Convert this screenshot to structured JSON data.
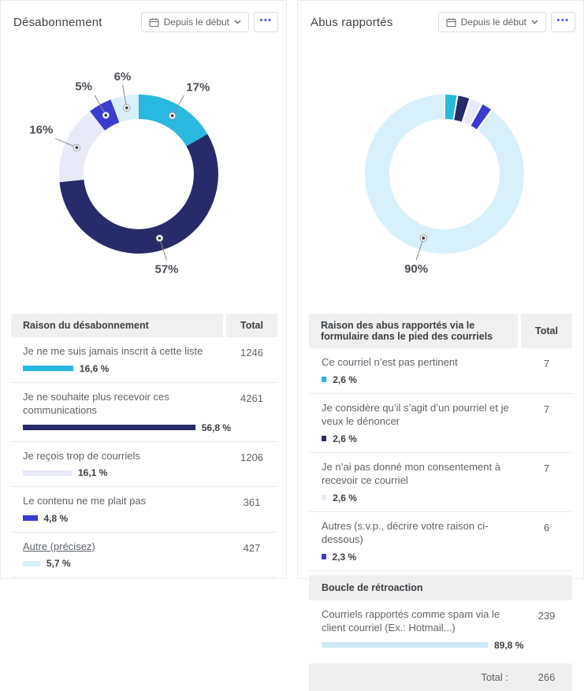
{
  "colors": {
    "palette": [
      "#28b8e0",
      "#272b69",
      "#e9eaf8",
      "#3a3bd1",
      "#d8f0fa"
    ],
    "accent_blue": "#4c5ff2",
    "table_header_bg": "#f0f0f1"
  },
  "panels": [
    {
      "title": "Désabonnement",
      "period_button": {
        "label": "Depuis le début",
        "icon": "calendar-icon",
        "chevron": "chevron-down-icon"
      },
      "more_button": {
        "icon": "ellipsis-icon"
      },
      "table": {
        "header": {
          "reason": "Raison du désabonnement",
          "total": "Total"
        },
        "rows": [
          {
            "label": "Je ne me suis jamais inscrit à cette liste",
            "link": false,
            "pct": 16.6,
            "pct_label": "16,6 %",
            "total": "1246",
            "color": "#28b8e0"
          },
          {
            "label": "Je ne souhaite plus recevoir ces communications",
            "link": false,
            "pct": 56.8,
            "pct_label": "56,8 %",
            "total": "4261",
            "color": "#272b69"
          },
          {
            "label": "Je reçois trop de courriels",
            "link": false,
            "pct": 16.1,
            "pct_label": "16,1 %",
            "total": "1206",
            "color": "#e9eaf8"
          },
          {
            "label": "Le contenu ne me plait pas",
            "link": false,
            "pct": 4.8,
            "pct_label": "4,8 %",
            "total": "361",
            "color": "#3a3bd1"
          },
          {
            "label": "Autre (précisez)",
            "link": true,
            "pct": 5.7,
            "pct_label": "5,7 %",
            "total": "427",
            "color": "#d8f0fa"
          }
        ]
      }
    },
    {
      "title": "Abus rapportés",
      "period_button": {
        "label": "Depuis le début",
        "icon": "calendar-icon",
        "chevron": "chevron-down-icon"
      },
      "more_button": {
        "icon": "ellipsis-icon"
      },
      "table": {
        "header": {
          "reason": "Raison des abus rapportés via le formulaire dans le pied des courriels",
          "total": "Total"
        },
        "rows": [
          {
            "label": "Ce courriel n’est pas pertinent",
            "link": false,
            "pct": 2.6,
            "pct_label": "2,6 %",
            "total": "7",
            "color": "#28b8e0"
          },
          {
            "label": "Je considère qu’il s’agit d’un pourriel et je veux le dénoncer",
            "link": false,
            "pct": 2.6,
            "pct_label": "2,6 %",
            "total": "7",
            "color": "#272b69"
          },
          {
            "label": "Je n’ai pas donné mon consentement à recevoir ce courriel",
            "link": false,
            "pct": 2.6,
            "pct_label": "2,6 %",
            "total": "7",
            "color": "#e9eaf8"
          },
          {
            "label": "Autres (s.v.p., décrire votre raison ci-dessous)",
            "link": false,
            "pct": 2.3,
            "pct_label": "2,3 %",
            "total": "6",
            "color": "#3a3bd1"
          }
        ],
        "section_header": "Boucle de rétroaction",
        "section_rows": [
          {
            "label": "Courriels rapportés comme spam via le client courriel (Ex.: Hotmail...)",
            "link": false,
            "pct": 89.8,
            "pct_label": "89,8 %",
            "total": "239",
            "color": "#cdeaf6"
          }
        ],
        "footer": {
          "label": "Total :",
          "value": "266"
        }
      }
    }
  ],
  "chart_data": [
    {
      "type": "pie",
      "subtype": "donut",
      "title": "Désabonnement",
      "unit": "%",
      "segments": [
        {
          "label": "Je ne me suis jamais inscrit à cette liste",
          "pct": 16.6,
          "count": 1246,
          "color": "#28b8e0",
          "callout": "17%"
        },
        {
          "label": "Je ne souhaite plus recevoir ces communications",
          "pct": 56.8,
          "count": 4261,
          "color": "#272b69",
          "callout": "57%"
        },
        {
          "label": "Je reçois trop de courriels",
          "pct": 16.1,
          "count": 1206,
          "color": "#e9eaf8",
          "callout": "16%"
        },
        {
          "label": "Le contenu ne me plait pas",
          "pct": 4.8,
          "count": 361,
          "color": "#3a3bd1",
          "callout": "5%"
        },
        {
          "label": "Autre (précisez)",
          "pct": 5.7,
          "count": 427,
          "color": "#d8f0fa",
          "callout": "6%"
        }
      ]
    },
    {
      "type": "pie",
      "subtype": "donut",
      "title": "Abus rapportés",
      "unit": "%",
      "total": 266,
      "segments": [
        {
          "label": "Ce courriel n’est pas pertinent",
          "pct": 2.6,
          "count": 7,
          "color": "#28b8e0",
          "callout": null
        },
        {
          "label": "Je considère qu’il s’agit d’un pourriel et je veux le dénoncer",
          "pct": 2.6,
          "count": 7,
          "color": "#272b69",
          "callout": null
        },
        {
          "label": "Je n’ai pas donné mon consentement à recevoir ce courriel",
          "pct": 2.6,
          "count": 7,
          "color": "#e9eaf8",
          "callout": null
        },
        {
          "label": "Autres (s.v.p., décrire votre raison ci-dessous)",
          "pct": 2.3,
          "count": 6,
          "color": "#3a3bd1",
          "callout": null
        },
        {
          "label": "Courriels rapportés comme spam via le client courriel (Ex.: Hotmail...)",
          "pct": 89.8,
          "count": 239,
          "color": "#d8f0fa",
          "callout": "90%"
        }
      ]
    }
  ]
}
